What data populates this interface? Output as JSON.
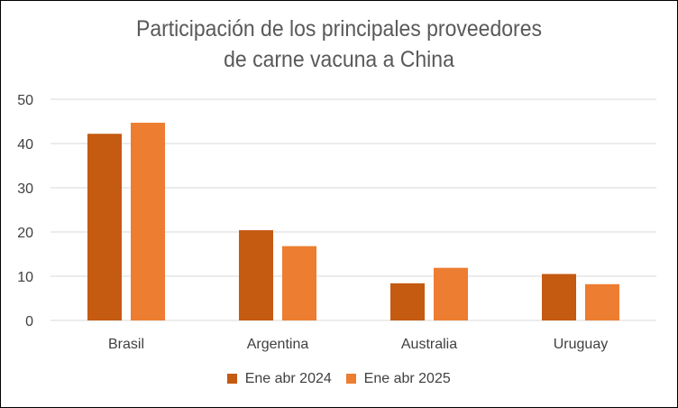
{
  "chart_data": {
    "type": "bar",
    "title_lines": [
      "Participación de los principales proveedores",
      "de carne vacuna a China"
    ],
    "categories": [
      "Brasil",
      "Argentina",
      "Australia",
      "Uruguay"
    ],
    "series": [
      {
        "name": "Ene abr 2024",
        "color": "#C55A11",
        "values": [
          42.2,
          20.4,
          8.4,
          10.5
        ]
      },
      {
        "name": "Ene abr 2025",
        "color": "#ED7D31",
        "values": [
          44.7,
          16.8,
          11.9,
          8.2
        ]
      }
    ],
    "ylim": [
      0,
      50
    ],
    "yticks": [
      0,
      10,
      20,
      30,
      40,
      50
    ],
    "grid": true,
    "legend_position": "bottom"
  }
}
